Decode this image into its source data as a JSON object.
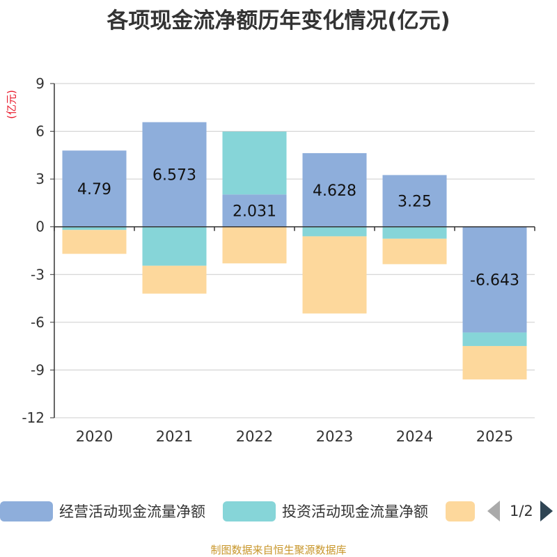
{
  "chart_data": {
    "type": "bar",
    "stacked": true,
    "title": "各项现金流净额历年变化情况(亿元)",
    "ylabel": "(亿元)",
    "xlabel": "",
    "ylim": [
      -12,
      9
    ],
    "yticks": [
      9,
      6,
      3,
      0,
      -3,
      -6,
      -9,
      -12
    ],
    "grid": true,
    "categories": [
      "2020",
      "2021",
      "2022",
      "2023",
      "2024",
      "2025"
    ],
    "series": [
      {
        "name": "经营活动现金流量净额",
        "color": "#8eaedb",
        "label_values": true,
        "values": [
          4.79,
          6.573,
          2.031,
          4.628,
          3.25,
          -6.643
        ],
        "labels": [
          "4.79",
          "6.573",
          "2.031",
          "4.628",
          "3.25",
          "-6.643"
        ]
      },
      {
        "name": "投资活动现金流量净额",
        "color": "#86d5d8",
        "label_values": false,
        "values": [
          -0.2,
          -2.45,
          3.95,
          -0.6,
          -0.75,
          -0.85
        ]
      },
      {
        "name": "",
        "color": "#fdd89c",
        "label_values": false,
        "values": [
          -1.5,
          -1.75,
          -2.3,
          -4.85,
          -1.6,
          -2.1
        ]
      }
    ],
    "legend": {
      "position": "bottom",
      "items": [
        "经营活动现金流量净额",
        "投资活动现金流量净额",
        ""
      ],
      "page": "1/2"
    }
  },
  "footer": {
    "source": "制图数据来自恒生聚源数据库"
  }
}
